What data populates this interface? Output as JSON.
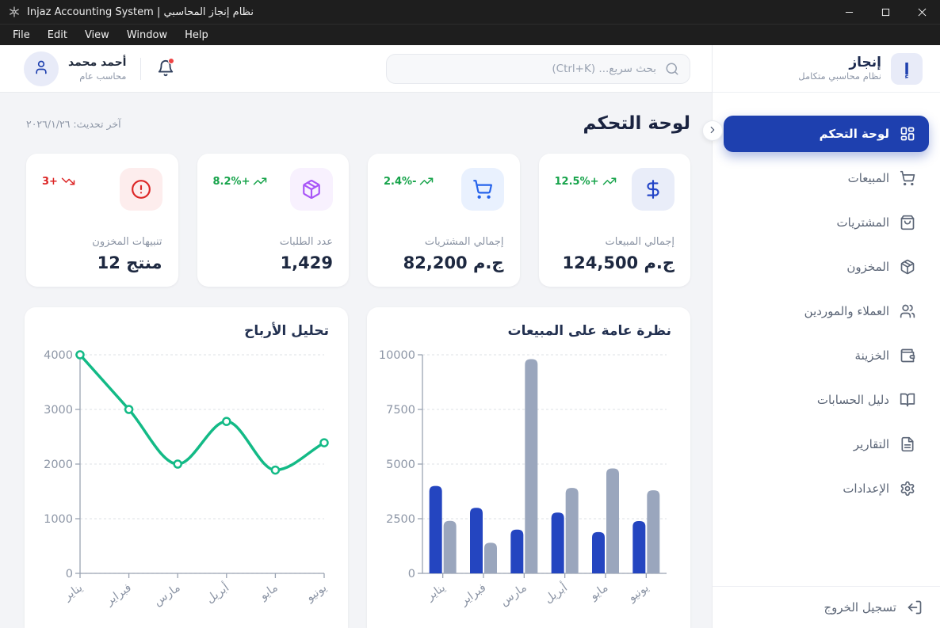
{
  "titlebar": {
    "title": "Injaz Accounting System | نظام إنجاز المحاسبي"
  },
  "menubar": {
    "items": [
      "File",
      "Edit",
      "View",
      "Window",
      "Help"
    ]
  },
  "header": {
    "logo": {
      "initial": "إ",
      "title": "إنجاز",
      "subtitle": "نظام محاسبي متكامل"
    },
    "search": {
      "placeholder": "بحث سريع... (Ctrl+K)"
    },
    "user": {
      "name": "أحمد محمد",
      "role": "محاسب عام"
    }
  },
  "sidebar": {
    "items": [
      {
        "label": "لوحة التحكم",
        "icon": "layout-dashboard",
        "active": true
      },
      {
        "label": "المبيعات",
        "icon": "shopping-cart",
        "active": false
      },
      {
        "label": "المشتريات",
        "icon": "shopping-bag",
        "active": false
      },
      {
        "label": "المخزون",
        "icon": "package",
        "active": false
      },
      {
        "label": "العملاء والموردين",
        "icon": "users",
        "active": false
      },
      {
        "label": "الخزينة",
        "icon": "wallet",
        "active": false
      },
      {
        "label": "دليل الحسابات",
        "icon": "book-open",
        "active": false
      },
      {
        "label": "التقارير",
        "icon": "file-text",
        "active": false
      },
      {
        "label": "الإعدادات",
        "icon": "settings",
        "active": false
      }
    ],
    "logout": {
      "label": "تسجيل الخروج",
      "icon": "log-out"
    }
  },
  "page": {
    "title": "لوحة التحكم",
    "last_update": "آخر تحديث: ٢٠٢٦/١/٢٦"
  },
  "stats": [
    {
      "label": "إجمالي المبيعات",
      "value": "124,500 ج.م",
      "trend": "+12.5%",
      "trend_icon": "trending-up",
      "trend_color": "#16a34a",
      "icon": "dollar-sign",
      "icon_color": "#2143c7",
      "icon_bg": "#e9edf9"
    },
    {
      "label": "إجمالي المشتريات",
      "value": "82,200 ج.م",
      "trend": "-2.4%",
      "trend_icon": "trending-up",
      "trend_color": "#16a34a",
      "icon": "shopping-cart",
      "icon_color": "#2563eb",
      "icon_bg": "#e9f1fe"
    },
    {
      "label": "عدد الطلبات",
      "value": "1,429",
      "trend": "+8.2%",
      "trend_icon": "trending-up",
      "trend_color": "#16a34a",
      "icon": "package",
      "icon_color": "#a855f7",
      "icon_bg": "#f8f1fe"
    },
    {
      "label": "تنبيهات المخزون",
      "value": "12 منتج",
      "trend": "+3",
      "trend_icon": "trending-down",
      "trend_color": "#dc2626",
      "icon": "alert-circle",
      "icon_color": "#dc2626",
      "icon_bg": "#fdeded"
    }
  ],
  "chart_data": [
    {
      "type": "bar",
      "title": "نظرة عامة على المبيعات",
      "categories": [
        "يناير",
        "فبراير",
        "مارس",
        "أبريل",
        "مايو",
        "يونيو"
      ],
      "series": [
        {
          "name": "series-blue",
          "color": "#2445c0",
          "values": [
            4000,
            3000,
            2000,
            2780,
            1890,
            2390
          ]
        },
        {
          "name": "series-gray",
          "color": "#9aa6bd",
          "values": [
            2400,
            1398,
            9800,
            3908,
            4800,
            3800
          ]
        }
      ],
      "ylim": [
        0,
        10000
      ],
      "yticks": [
        0,
        2500,
        5000,
        7500,
        10000
      ],
      "grid": "horizontal-dashed",
      "legend": false
    },
    {
      "type": "line",
      "title": "تحليل الأرباح",
      "categories": [
        "يناير",
        "فبراير",
        "مارس",
        "أبريل",
        "مايو",
        "يونيو"
      ],
      "series": [
        {
          "name": "series-green",
          "color": "#13ba86",
          "values": [
            4000,
            3000,
            2000,
            2780,
            1890,
            2390
          ]
        }
      ],
      "ylim": [
        0,
        4000
      ],
      "yticks": [
        0,
        1000,
        2000,
        3000,
        4000
      ],
      "grid": "horizontal-dashed",
      "legend": false
    }
  ]
}
